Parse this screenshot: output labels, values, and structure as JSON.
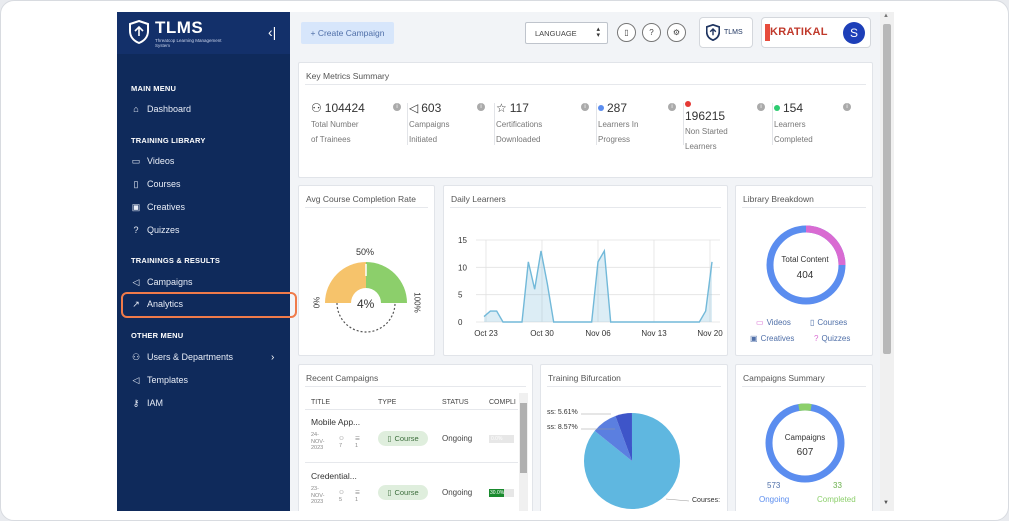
{
  "sidebar": {
    "logo_title": "TLMS",
    "logo_subtitle": "Threatcop Learning Management System",
    "sections": {
      "main_menu": "MAIN MENU",
      "training_library": "TRAINING LIBRARY",
      "trainings_results": "TRAININGS & RESULTS",
      "other_menu": "OTHER MENU"
    },
    "items": {
      "dashboard": "Dashboard",
      "videos": "Videos",
      "courses": "Courses",
      "creatives": "Creatives",
      "quizzes": "Quizzes",
      "campaigns": "Campaigns",
      "analytics": "Analytics",
      "users_departments": "Users & Departments",
      "templates": "Templates",
      "iam": "IAM"
    }
  },
  "topbar": {
    "create_campaign": "+ Create Campaign",
    "language": "LANGUAGE",
    "brand_small": "TLMS",
    "brand_name": "KRATIKAL",
    "avatar_letter": "S"
  },
  "key_metrics": {
    "title": "Key Metrics Summary",
    "items": [
      {
        "value": "104424",
        "label_lines": [
          "Total Number",
          "of Trainees"
        ],
        "icon": "user-icon"
      },
      {
        "value": "603",
        "label_lines": [
          "Campaigns",
          "Initiated"
        ],
        "icon": "megaphone-icon"
      },
      {
        "value": "117",
        "label_lines": [
          "Certifications",
          "Downloaded"
        ],
        "icon": "star-icon"
      },
      {
        "value": "287",
        "label_lines": [
          "Learners In",
          "Progress"
        ],
        "icon": "dot-blue-icon",
        "color": "#5b8def"
      },
      {
        "value": "196215",
        "label_lines": [
          "Non Started",
          "Learners"
        ],
        "icon": "dot-red-icon",
        "color": "#e53935"
      },
      {
        "value": "154",
        "label_lines": [
          "Learners",
          "Completed"
        ],
        "icon": "dot-green-icon",
        "color": "#2ecc71"
      }
    ]
  },
  "avg_completion": {
    "title": "Avg Course Completion Rate",
    "value_pct": 4,
    "value_label": "4%",
    "label_50": "50%",
    "label_0": "0%",
    "label_100": "100%",
    "colors": {
      "low": "#f6c36b",
      "high": "#8ccf6b"
    }
  },
  "chart_data": {
    "type": "area",
    "title": "Daily Learners",
    "x_ticks": [
      "Oct 23",
      "Oct 30",
      "Nov 06",
      "Nov 13",
      "Nov 20"
    ],
    "y_ticks": [
      "0",
      "5",
      "10",
      "15"
    ],
    "ylim": [
      0,
      15
    ],
    "values": [
      1,
      2,
      2,
      0,
      0,
      0,
      0,
      11,
      6,
      13,
      7,
      0,
      0,
      0,
      0,
      0,
      0,
      0,
      11,
      13,
      0,
      0,
      0,
      0,
      0,
      0,
      0,
      0,
      0,
      0,
      0,
      0,
      0,
      0,
      0,
      2,
      11
    ],
    "color": "#72b9d9"
  },
  "library": {
    "title": "Library Breakdown",
    "center_label": "Total Content",
    "center_value": "404",
    "legend": {
      "videos": "Videos",
      "courses": "Courses",
      "creatives": "Creatives",
      "quizzes": "Quizzes"
    },
    "colors": {
      "blue": "#5b8def",
      "pink": "#d96bd2"
    }
  },
  "recent_campaigns": {
    "title": "Recent Campaigns",
    "columns": {
      "title": "TITLE",
      "type": "TYPE",
      "status": "STATUS",
      "completion": "COMPLI"
    },
    "rows": [
      {
        "title": "Mobile App...",
        "date": [
          "24-",
          "NOV-",
          "2023"
        ],
        "count_a": "7",
        "count_b": "1",
        "type": "Course",
        "status": "Ongoing",
        "completion": "0.0%"
      },
      {
        "title": "Credential...",
        "date": [
          "23-",
          "NOV-",
          "2023"
        ],
        "count_a": "5",
        "count_b": "1",
        "type": "Course",
        "status": "Ongoing",
        "completion": "30.0%"
      }
    ]
  },
  "training_bifurcation": {
    "title": "Training Bifurcation",
    "label_a": "ss: 5.61%",
    "label_b": "ss: 8.57%",
    "label_c": "Courses:",
    "colors": {
      "main": "#5fb7e0",
      "mid": "#5b7fe0",
      "small": "#3e55c9"
    }
  },
  "campaigns_summary": {
    "title": "Campaigns Summary",
    "center_label": "Campaigns",
    "center_value": "607",
    "ongoing_value": "573",
    "ongoing_label": "Ongoing",
    "completed_value": "33",
    "completed_label": "Completed",
    "colors": {
      "ongoing": "#5b8def",
      "completed": "#8ccf6b"
    }
  }
}
